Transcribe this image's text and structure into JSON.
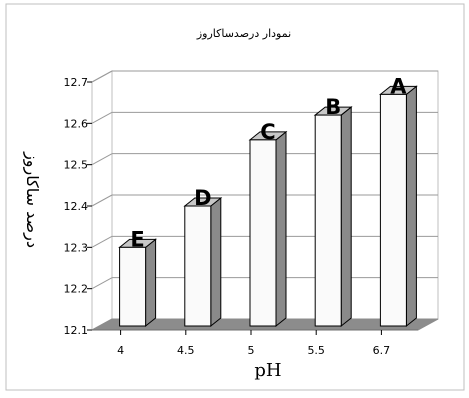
{
  "chart_data": {
    "type": "bar",
    "title": "نمودار درصدساکاروز",
    "xlabel": "pH",
    "ylabel": "درصد ساکاروز",
    "categories": [
      "4",
      "4.5",
      "5",
      "5.5",
      "6.7"
    ],
    "values": [
      12.3,
      12.4,
      12.56,
      12.62,
      12.67
    ],
    "bar_labels": [
      "E",
      "D",
      "C",
      "B",
      "A"
    ],
    "y_ticks": [
      "12.1",
      "12.2",
      "12.3",
      "12.4",
      "12.5",
      "12.6",
      "12.7"
    ],
    "ylim": [
      12.1,
      12.7
    ],
    "grid": true,
    "legend": "none",
    "colors": {
      "bar_front": "#fafafa",
      "bar_side": "#8a8a8a",
      "bar_top": "#c8c8c8",
      "floor": "#8c8c8c",
      "grid": "#9a9a9a",
      "frame": "#bfbfbf",
      "text": "#000000"
    }
  }
}
